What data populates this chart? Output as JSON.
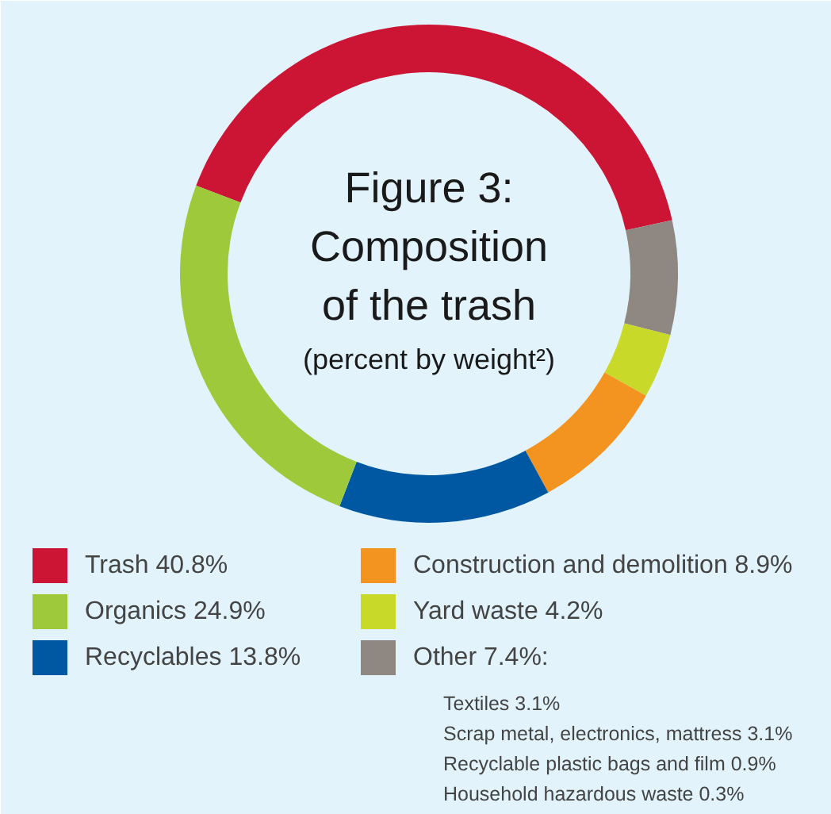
{
  "chart_data": {
    "type": "donut",
    "title": "Figure 3: Composition of the trash",
    "subtitle": "(percent by weight²)",
    "categories": [
      "Trash",
      "Other",
      "Yard waste",
      "Construction and demolition",
      "Recyclables",
      "Organics"
    ],
    "values": [
      40.8,
      7.4,
      4.2,
      8.9,
      13.8,
      24.9
    ],
    "colors": [
      "#cc1535",
      "#8f8782",
      "#c9d92a",
      "#f39420",
      "#0058a3",
      "#9dc93b"
    ],
    "value_labels": [
      "40.8%",
      "7.4%:",
      "4.2%",
      "8.9%",
      "13.8%",
      "24.9%"
    ],
    "annotations": [
      "Textiles 3.1%",
      "Scrap metal, electronics, mattress 3.1%",
      "Recyclable plastic bags and film 0.9%",
      "Household hazardous waste 0.3%"
    ],
    "legend": "bottom"
  }
}
